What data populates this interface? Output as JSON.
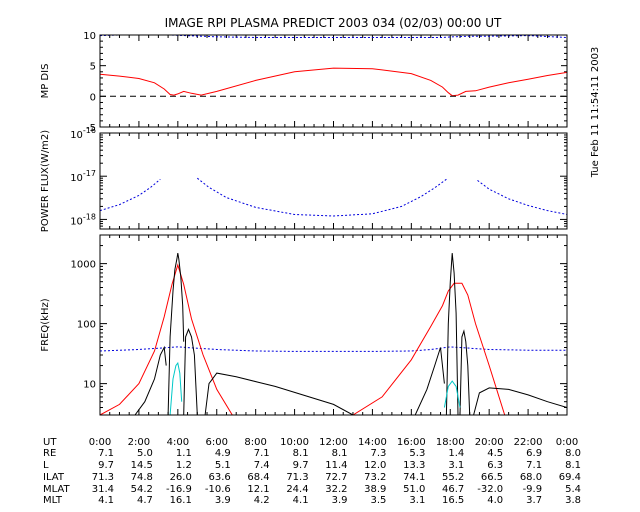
{
  "title": "IMAGE  RPI PLASMA PREDICT 2003 034 (02/03) 00:00 UT",
  "timestamp": "Tue Feb 11 11:54:11 2003",
  "colors": {
    "red": "#ff0000",
    "blue": "#0000dd",
    "black": "#000000",
    "cyan": "#00c8c8"
  },
  "chart_data": [
    {
      "type": "line",
      "ylabel": "MP DIS",
      "xlim": [
        0,
        24
      ],
      "ylim": [
        -5,
        10
      ],
      "yticks": [
        "-5",
        "0",
        "5",
        "10"
      ],
      "series": [
        {
          "color": "#0000dd",
          "style": "dashed",
          "x": [
            0,
            1,
            2.8,
            3.6,
            4.4,
            5.2,
            6,
            8,
            12,
            16,
            17.6,
            18.2,
            19,
            20,
            22,
            24
          ],
          "y": [
            9.9,
            10,
            10,
            10,
            9.9,
            9.8,
            9.7,
            9.6,
            9.6,
            9.6,
            9.6,
            9.7,
            9.8,
            9.8,
            9.9,
            9.6
          ]
        },
        {
          "color": "#ff0000",
          "style": "solid",
          "x": [
            0,
            1,
            2,
            2.8,
            3.3,
            3.6,
            3.8,
            4.0,
            4.3,
            4.7,
            5.2,
            6,
            8,
            10,
            12,
            14,
            16,
            17,
            17.6,
            17.9,
            18.1,
            18.4,
            18.8,
            19.3,
            20,
            21,
            22,
            23,
            24
          ],
          "y": [
            3.6,
            3.3,
            2.9,
            2.2,
            1.2,
            0.3,
            0.2,
            0.4,
            0.8,
            0.5,
            0.2,
            0.8,
            2.6,
            4.0,
            4.6,
            4.5,
            3.7,
            2.6,
            1.5,
            0.6,
            0.1,
            0.2,
            0.8,
            0.9,
            1.5,
            2.2,
            2.8,
            3.4,
            3.9
          ]
        },
        {
          "color": "#000000",
          "style": "dashed",
          "x": [
            0,
            24
          ],
          "y": [
            0,
            0
          ]
        }
      ]
    },
    {
      "type": "line",
      "ylabel": "POWER FLUX(W/m2)",
      "yscale": "log",
      "xlim": [
        0,
        24
      ],
      "ylim": [
        6e-19,
        1e-16
      ],
      "yticks": [
        {
          "value": 1e-16,
          "base": "10",
          "exp": "-16"
        },
        {
          "value": 1e-17,
          "base": "10",
          "exp": "-17"
        },
        {
          "value": 1e-18,
          "base": "10",
          "exp": "-18"
        }
      ],
      "series": [
        {
          "color": "#0000dd",
          "style": "dashed",
          "x": [
            0,
            1,
            2,
            2.6,
            3.1
          ],
          "y": [
            1.6e-18,
            2.2e-18,
            3.6e-18,
            5.5e-18,
            8.5e-18
          ]
        },
        {
          "color": "#0000dd",
          "style": "dashed",
          "x": [
            5.0,
            5.6,
            6.5,
            8,
            10,
            12,
            14,
            15.5,
            16.5,
            17.2,
            17.8
          ],
          "y": [
            9e-18,
            5.5e-18,
            3.2e-18,
            1.9e-18,
            1.3e-18,
            1.2e-18,
            1.35e-18,
            2e-18,
            3.4e-18,
            5.4e-18,
            8.5e-18
          ]
        },
        {
          "color": "#0000dd",
          "style": "dashed",
          "x": [
            19.4,
            20,
            21,
            22,
            23,
            24
          ],
          "y": [
            8e-18,
            5e-18,
            3e-18,
            2.1e-18,
            1.6e-18,
            1.3e-18
          ]
        }
      ]
    },
    {
      "type": "line",
      "ylabel": "FREQ(kHz)",
      "yscale": "log",
      "xlim": [
        0,
        24
      ],
      "ylim": [
        3,
        3000
      ],
      "yticks": [
        {
          "value": 1000,
          "label": "1000"
        },
        {
          "value": 100,
          "label": "100"
        },
        {
          "value": 10,
          "label": "10"
        }
      ],
      "series": [
        {
          "color": "#0000dd",
          "style": "dashed",
          "x": [
            0,
            2,
            3,
            4,
            5,
            6,
            8,
            10,
            12,
            14,
            16,
            17,
            18,
            19,
            20,
            22,
            24
          ],
          "y": [
            35,
            37,
            39,
            41,
            39,
            37,
            35,
            34.5,
            34.5,
            34.5,
            35,
            37,
            41,
            39,
            37,
            36,
            36
          ]
        },
        {
          "color": "#ff0000",
          "style": "solid",
          "x": [
            0,
            1,
            2,
            2.8,
            3.3,
            3.7,
            4.0,
            4.3,
            4.7,
            5.3,
            6,
            6.8
          ],
          "y": [
            3,
            4.5,
            10,
            35,
            130,
            450,
            950,
            450,
            120,
            30,
            8,
            3
          ]
        },
        {
          "color": "#ff0000",
          "style": "solid",
          "x": [
            13,
            14.5,
            16,
            17,
            17.6,
            17.9,
            18.2,
            18.6,
            18.9,
            19.3,
            20,
            20.8
          ],
          "y": [
            3,
            6,
            25,
            90,
            200,
            350,
            470,
            470,
            300,
            100,
            20,
            3
          ]
        },
        {
          "color": "#000000",
          "style": "solid",
          "x": [
            1.8,
            2.3,
            2.8,
            3.1,
            3.3,
            3.4
          ],
          "y": [
            3,
            5,
            12,
            30,
            40,
            20
          ]
        },
        {
          "color": "#000000",
          "style": "solid",
          "x": [
            3.5,
            3.6,
            3.75,
            3.85,
            3.95,
            4.0,
            4.05,
            4.15,
            4.25,
            4.3
          ],
          "y": [
            3,
            60,
            350,
            800,
            1200,
            1500,
            1200,
            600,
            200,
            50
          ]
        },
        {
          "color": "#000000",
          "style": "solid",
          "x": [
            4.3,
            4.4,
            4.55,
            4.7,
            4.85,
            5.0
          ],
          "y": [
            3,
            60,
            80,
            60,
            30,
            3
          ]
        },
        {
          "color": "#000000",
          "style": "solid",
          "x": [
            5.4,
            5.6,
            6,
            7,
            9,
            12,
            13
          ],
          "y": [
            3,
            10,
            15,
            13,
            9,
            4.5,
            3
          ]
        },
        {
          "color": "#000000",
          "style": "solid",
          "x": [
            16.2,
            16.8,
            17.2,
            17.5,
            17.7
          ],
          "y": [
            3,
            8,
            20,
            40,
            10
          ]
        },
        {
          "color": "#000000",
          "style": "solid",
          "x": [
            17.8,
            17.9,
            18.0,
            18.1,
            18.2,
            18.3,
            18.4
          ],
          "y": [
            3,
            100,
            500,
            1500,
            700,
            150,
            3
          ]
        },
        {
          "color": "#000000",
          "style": "solid",
          "x": [
            18.5,
            18.6,
            18.7,
            18.8,
            18.9,
            19.0
          ],
          "y": [
            3,
            60,
            75,
            50,
            20,
            3
          ]
        },
        {
          "color": "#000000",
          "style": "solid",
          "x": [
            19.2,
            19.5,
            20,
            21,
            22,
            23,
            24
          ],
          "y": [
            3,
            7,
            8.5,
            8,
            6.5,
            5,
            4
          ]
        },
        {
          "color": "#00c8c8",
          "style": "solid",
          "x": [
            3.6,
            3.75,
            3.9,
            4.0,
            4.1,
            4.2
          ],
          "y": [
            3,
            12,
            20,
            22,
            15,
            5
          ]
        },
        {
          "color": "#00c8c8",
          "style": "solid",
          "x": [
            17.7,
            17.9,
            18.1,
            18.3,
            18.5
          ],
          "y": [
            4,
            9,
            11,
            9,
            4
          ]
        }
      ]
    }
  ],
  "orbit_table": {
    "rows": [
      {
        "label": "UT",
        "values": [
          "0:00",
          "2:00",
          "4:00",
          "6:00",
          "8:00",
          "10:00",
          "12:00",
          "14:00",
          "16:00",
          "18:00",
          "20:00",
          "22:00",
          "0:00"
        ]
      },
      {
        "label": "RE",
        "values": [
          "7.1",
          "5.0",
          "1.1",
          "4.9",
          "7.1",
          "8.1",
          "8.1",
          "7.3",
          "5.3",
          "1.4",
          "4.5",
          "6.9",
          "8.0"
        ]
      },
      {
        "label": "L",
        "values": [
          "9.7",
          "14.5",
          "1.2",
          "5.1",
          "7.4",
          "9.7",
          "11.4",
          "12.0",
          "13.3",
          "3.1",
          "6.3",
          "7.1",
          "8.1"
        ]
      },
      {
        "label": "ILAT",
        "values": [
          "71.3",
          "74.8",
          "26.0",
          "63.6",
          "68.4",
          "71.3",
          "72.7",
          "73.2",
          "74.1",
          "55.2",
          "66.5",
          "68.0",
          "69.4"
        ]
      },
      {
        "label": "MLAT",
        "values": [
          "31.4",
          "54.2",
          "-16.9",
          "-10.6",
          "12.1",
          "24.4",
          "32.2",
          "38.9",
          "51.0",
          "46.7",
          "-32.0",
          "-9.9",
          "5.4"
        ]
      },
      {
        "label": "MLT",
        "values": [
          "4.1",
          "4.7",
          "16.1",
          "3.9",
          "4.2",
          "4.1",
          "3.9",
          "3.5",
          "3.1",
          "16.5",
          "4.0",
          "3.7",
          "3.8"
        ]
      }
    ]
  }
}
